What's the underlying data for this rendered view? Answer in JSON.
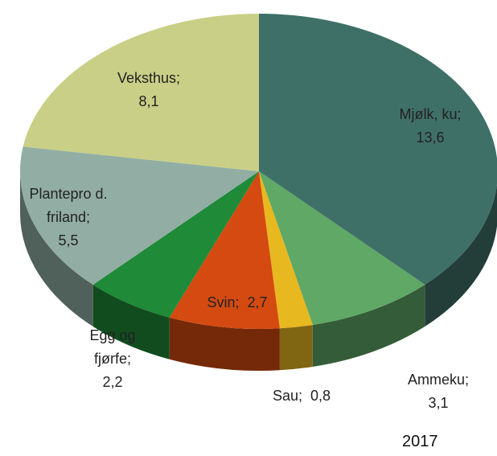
{
  "chart_data": {
    "type": "pie3d",
    "categories": [
      "Mjølk, ku",
      "Ammeku",
      "Sau",
      "Svin",
      "Egg og fjørfe",
      "Plantepro d. friland",
      "Veksthus"
    ],
    "values": [
      13.6,
      3.1,
      0.8,
      2.7,
      2.2,
      5.5,
      8.1
    ],
    "value_labels": [
      "13,6",
      "3,1",
      "0,8",
      "2,7",
      "2,2",
      "5,5",
      "8,1"
    ],
    "separator": ";",
    "colors": [
      "#3f7068",
      "#5fa866",
      "#e8b820",
      "#d44a10",
      "#1f8a38",
      "#92aea4",
      "#c9cf86"
    ],
    "subtitle": "2017"
  }
}
